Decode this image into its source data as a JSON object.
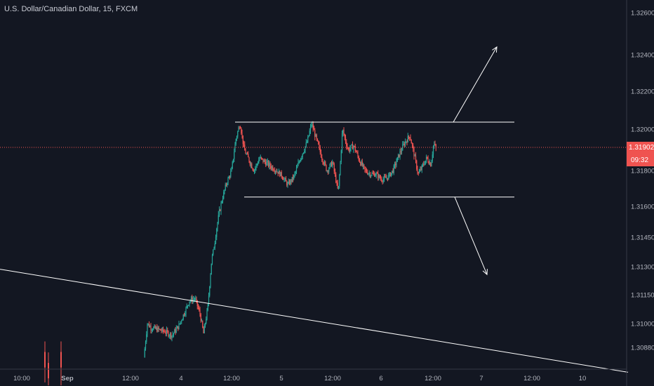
{
  "header": {
    "title": "U.S. Dollar/Canadian Dollar, 15, FXCM"
  },
  "colors": {
    "background": "#131722",
    "up": "#26a69a",
    "down": "#ef5350",
    "text": "#b2b5be",
    "axis_line": "#363a45",
    "price_line": "#ef5350",
    "drawing": "#ffffff"
  },
  "price_tag": {
    "price": "1.31902",
    "countdown": "09:32"
  },
  "chart_data": {
    "type": "candlestick",
    "title": "U.S. Dollar/Canadian Dollar, 15, FXCM",
    "symbol": "USDCAD",
    "timeframe": "15",
    "source": "FXCM",
    "y_ticks": [
      "1.32600",
      "1.32400",
      "1.32200",
      "1.32000",
      "1.31800",
      "1.31600",
      "1.31450",
      "1.31300",
      "1.31150",
      "1.31000",
      "1.30880"
    ],
    "x_ticks": [
      "10:00",
      "Sep",
      "12:00",
      "4",
      "12:00",
      "5",
      "12:00",
      "6",
      "12:00",
      "7",
      "12:00",
      "10"
    ],
    "last_price": 1.31902,
    "close_path": [
      {
        "t": 205,
        "p": 1.3083
      },
      {
        "t": 210,
        "p": 1.31
      },
      {
        "t": 215,
        "p": 1.3098
      },
      {
        "t": 225,
        "p": 1.3097
      },
      {
        "t": 235,
        "p": 1.3096
      },
      {
        "t": 245,
        "p": 1.3094
      },
      {
        "t": 255,
        "p": 1.3099
      },
      {
        "t": 262,
        "p": 1.3105
      },
      {
        "t": 270,
        "p": 1.3112
      },
      {
        "t": 278,
        "p": 1.3113
      },
      {
        "t": 285,
        "p": 1.3105
      },
      {
        "t": 290,
        "p": 1.3095
      },
      {
        "t": 296,
        "p": 1.3108
      },
      {
        "t": 302,
        "p": 1.3135
      },
      {
        "t": 308,
        "p": 1.315
      },
      {
        "t": 316,
        "p": 1.3163
      },
      {
        "t": 322,
        "p": 1.3172
      },
      {
        "t": 330,
        "p": 1.318
      },
      {
        "t": 336,
        "p": 1.3195
      },
      {
        "t": 342,
        "p": 1.3203
      },
      {
        "t": 348,
        "p": 1.319
      },
      {
        "t": 355,
        "p": 1.3185
      },
      {
        "t": 362,
        "p": 1.318
      },
      {
        "t": 370,
        "p": 1.3186
      },
      {
        "t": 378,
        "p": 1.3184
      },
      {
        "t": 386,
        "p": 1.3182
      },
      {
        "t": 394,
        "p": 1.318
      },
      {
        "t": 402,
        "p": 1.3177
      },
      {
        "t": 410,
        "p": 1.3172
      },
      {
        "t": 418,
        "p": 1.3176
      },
      {
        "t": 428,
        "p": 1.3186
      },
      {
        "t": 438,
        "p": 1.3194
      },
      {
        "t": 444,
        "p": 1.3203
      },
      {
        "t": 450,
        "p": 1.3196
      },
      {
        "t": 458,
        "p": 1.3187
      },
      {
        "t": 466,
        "p": 1.318
      },
      {
        "t": 474,
        "p": 1.3184
      },
      {
        "t": 482,
        "p": 1.3168
      },
      {
        "t": 488,
        "p": 1.32
      },
      {
        "t": 496,
        "p": 1.319
      },
      {
        "t": 504,
        "p": 1.3192
      },
      {
        "t": 512,
        "p": 1.3185
      },
      {
        "t": 520,
        "p": 1.318
      },
      {
        "t": 528,
        "p": 1.3178
      },
      {
        "t": 536,
        "p": 1.3178
      },
      {
        "t": 544,
        "p": 1.3175
      },
      {
        "t": 552,
        "p": 1.3176
      },
      {
        "t": 560,
        "p": 1.318
      },
      {
        "t": 568,
        "p": 1.3187
      },
      {
        "t": 576,
        "p": 1.3193
      },
      {
        "t": 584,
        "p": 1.3197
      },
      {
        "t": 590,
        "p": 1.3188
      },
      {
        "t": 596,
        "p": 1.3178
      },
      {
        "t": 602,
        "p": 1.3182
      },
      {
        "t": 608,
        "p": 1.3186
      },
      {
        "t": 614,
        "p": 1.3183
      },
      {
        "t": 618,
        "p": 1.3193
      },
      {
        "t": 622,
        "p": 1.31902
      }
    ],
    "drawings": {
      "resistance": {
        "from": {
          "t": 335,
          "p": 1.32037
        },
        "to": {
          "t": 733,
          "p": 1.32037
        }
      },
      "support": {
        "from": {
          "t": 348,
          "p": 1.31652
        },
        "to": {
          "t": 733,
          "p": 1.31652
        }
      },
      "trendline": {
        "from": {
          "t": 0,
          "p": 1.3128
        },
        "to": {
          "t": 895,
          "p": 1.30755
        }
      },
      "arrow_up": {
        "from": {
          "t": 646,
          "p": 1.32037
        },
        "to": {
          "t": 708,
          "p": 1.32437
        }
      },
      "arrow_down": {
        "from": {
          "t": 648,
          "p": 1.31652
        },
        "to": {
          "t": 694,
          "p": 1.31253
        }
      }
    }
  }
}
